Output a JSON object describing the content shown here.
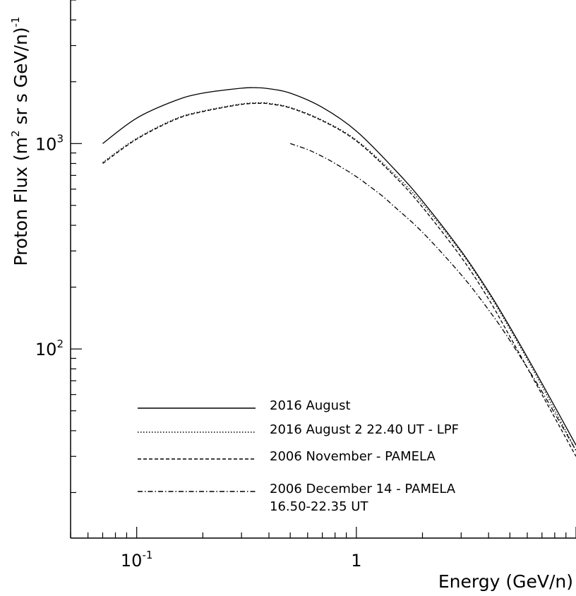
{
  "chart_data": {
    "type": "line",
    "title": "",
    "xlabel": "Energy (GeV/n)",
    "ylabel": "Proton Flux (m² sr s GeV/n)⁻¹",
    "ylabel_parts": {
      "pre": "Proton Flux (m",
      "sup1": "2",
      "mid": " sr s GeV/n)",
      "sup2": "-1"
    },
    "xscale": "log",
    "yscale": "log",
    "xlim": [
      0.05,
      10
    ],
    "ylim": [
      12,
      5000
    ],
    "x_ticks": [
      {
        "value": 0.1,
        "base": "10",
        "exp": "-1"
      },
      {
        "value": 1,
        "base": "1",
        "exp": ""
      }
    ],
    "y_ticks": [
      {
        "value": 100,
        "base": "10",
        "exp": "2"
      },
      {
        "value": 1000,
        "base": "10",
        "exp": "3"
      }
    ],
    "grid": false,
    "legend_position": "bottom-left",
    "series": [
      {
        "name": "2016 August",
        "style": "solid",
        "x": [
          0.07,
          0.1,
          0.15,
          0.2,
          0.3,
          0.35,
          0.4,
          0.5,
          0.7,
          1.0,
          1.5,
          2.0,
          3.0,
          4.0,
          5.0,
          7.0,
          10.0
        ],
        "y": [
          1000,
          1330,
          1620,
          1760,
          1860,
          1870,
          1850,
          1760,
          1500,
          1150,
          745,
          525,
          300,
          190,
          128,
          68,
          34
        ]
      },
      {
        "name": "2016 August 2 22.40 UT - LPF",
        "style": "dotted",
        "x": [
          0.07,
          0.1,
          0.15,
          0.2,
          0.3,
          0.37,
          0.4,
          0.5,
          0.7,
          1.0,
          1.5,
          2.0,
          3.0,
          4.0,
          5.0,
          7.0,
          10.0
        ],
        "y": [
          810,
          1060,
          1320,
          1440,
          1560,
          1580,
          1570,
          1500,
          1300,
          1040,
          705,
          510,
          295,
          186,
          125,
          66,
          32
        ]
      },
      {
        "name": "2006 November - PAMELA",
        "style": "dashed",
        "x": [
          0.07,
          0.1,
          0.15,
          0.2,
          0.3,
          0.37,
          0.4,
          0.5,
          0.7,
          1.0,
          1.5,
          2.0,
          3.0,
          4.0,
          5.0,
          7.0,
          10.0
        ],
        "y": [
          800,
          1050,
          1310,
          1430,
          1550,
          1570,
          1560,
          1490,
          1290,
          1030,
          690,
          490,
          280,
          175,
          115,
          60,
          30
        ]
      },
      {
        "name": "2006 December 14 - PAMELA",
        "name_line2": "16.50-22.35 UT",
        "style": "dashdot",
        "x": [
          0.5,
          0.6,
          0.7,
          0.8,
          1.0,
          1.3,
          1.5,
          2.0,
          3.0,
          4.0,
          5.0,
          7.0,
          10.0
        ],
        "y": [
          1000,
          935,
          865,
          800,
          690,
          560,
          490,
          370,
          230,
          155,
          110,
          62,
          32
        ]
      }
    ]
  }
}
